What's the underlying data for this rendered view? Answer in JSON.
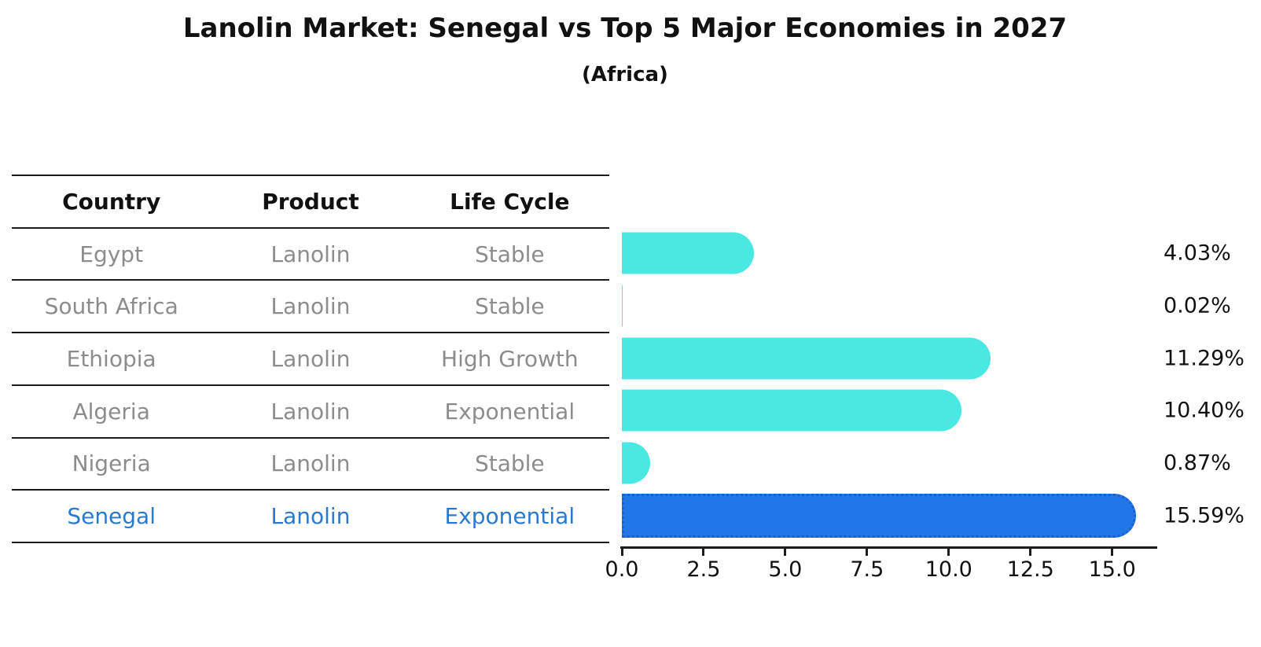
{
  "header": {
    "title": "Lanolin Market: Senegal vs Top 5 Major Economies in 2027",
    "subtitle": "(Africa)"
  },
  "table": {
    "columns": [
      "Country",
      "Product",
      "Life Cycle"
    ],
    "rows": [
      {
        "country": "Egypt",
        "product": "Lanolin",
        "life_cycle": "Stable",
        "highlighted": false
      },
      {
        "country": "South Africa",
        "product": "Lanolin",
        "life_cycle": "Stable",
        "highlighted": false
      },
      {
        "country": "Ethiopia",
        "product": "Lanolin",
        "life_cycle": "High Growth",
        "highlighted": false
      },
      {
        "country": "Algeria",
        "product": "Lanolin",
        "life_cycle": "Exponential",
        "highlighted": false
      },
      {
        "country": "Nigeria",
        "product": "Lanolin",
        "life_cycle": "Stable",
        "highlighted": false
      },
      {
        "country": "Senegal",
        "product": "Lanolin",
        "life_cycle": "Exponential",
        "highlighted": true
      }
    ]
  },
  "chart_data": {
    "type": "bar",
    "orientation": "horizontal",
    "title": "Lanolin Market: Senegal vs Top 5 Major Economies in 2027",
    "subtitle": "(Africa)",
    "categories": [
      "Egypt",
      "South Africa",
      "Ethiopia",
      "Algeria",
      "Nigeria",
      "Senegal"
    ],
    "values": [
      4.03,
      0.02,
      11.29,
      10.4,
      0.87,
      15.59
    ],
    "value_labels": [
      "4.03%",
      "0.02%",
      "11.29%",
      "10.40%",
      "0.87%",
      "15.59%"
    ],
    "highlight_index": 5,
    "xlabel": "",
    "ylabel": "",
    "xlim": [
      0,
      16.33
    ],
    "xticks": [
      0.0,
      2.5,
      5.0,
      7.5,
      10.0,
      12.5,
      15.0
    ],
    "xtick_labels": [
      "0.0",
      "2.5",
      "5.0",
      "7.5",
      "10.0",
      "12.5",
      "15.0"
    ],
    "grid": false,
    "legend": "none",
    "colors": {
      "bar": "#49e8e3",
      "highlight_bar": "#2176e8",
      "highlight_bar_border": "#1a5fd0",
      "highlight_text": "#2979cf",
      "muted_text": "#8c8c8c",
      "text": "#111111"
    }
  }
}
